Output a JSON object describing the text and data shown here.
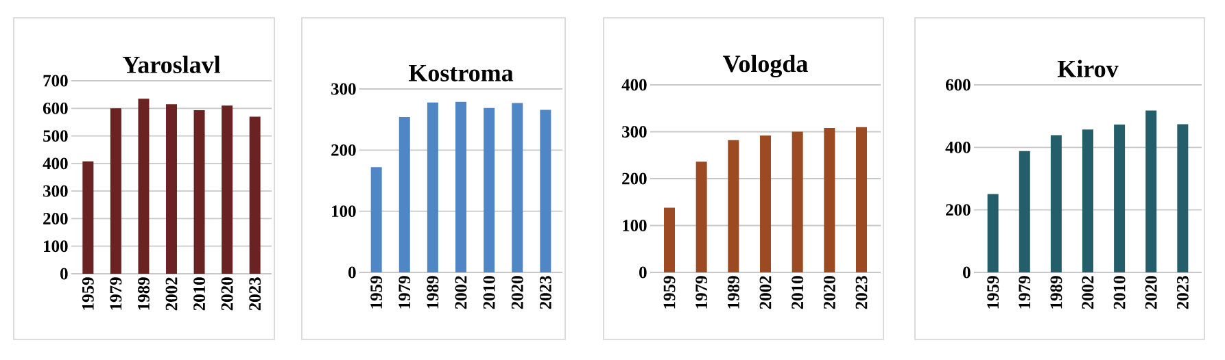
{
  "chart_data": [
    {
      "type": "bar",
      "title": "Yaroslavl",
      "categories": [
        "1959",
        "1979",
        "1989",
        "2002",
        "2010",
        "2020",
        "2023"
      ],
      "values": [
        408,
        600,
        635,
        615,
        593,
        610,
        570
      ],
      "color": "#6b2222",
      "ylim": [
        0,
        700
      ],
      "yticks": [
        0,
        100,
        200,
        300,
        400,
        500,
        600,
        700
      ],
      "grid": "y"
    },
    {
      "type": "bar",
      "title": "Kostroma",
      "categories": [
        "1959",
        "1979",
        "1989",
        "2002",
        "2010",
        "2020",
        "2023"
      ],
      "values": [
        172,
        254,
        278,
        279,
        269,
        277,
        266
      ],
      "color": "#4f86c6",
      "ylim": [
        0,
        300
      ],
      "yticks": [
        0,
        100,
        200,
        300
      ],
      "grid": "y"
    },
    {
      "type": "bar",
      "title": "Vologda",
      "categories": [
        "1959",
        "1979",
        "1989",
        "2002",
        "2010",
        "2020",
        "2023"
      ],
      "values": [
        138,
        236,
        282,
        292,
        300,
        308,
        310
      ],
      "color": "#9c4a22",
      "ylim": [
        0,
        400
      ],
      "yticks": [
        0,
        100,
        200,
        300,
        400
      ],
      "grid": "y"
    },
    {
      "type": "bar",
      "title": "Kirov",
      "categories": [
        "1959",
        "1979",
        "1989",
        "2002",
        "2010",
        "2020",
        "2023"
      ],
      "values": [
        251,
        388,
        439,
        457,
        473,
        518,
        474
      ],
      "color": "#235e6a",
      "ylim": [
        0,
        600
      ],
      "yticks": [
        0,
        200,
        400,
        600
      ],
      "grid": "y"
    }
  ]
}
